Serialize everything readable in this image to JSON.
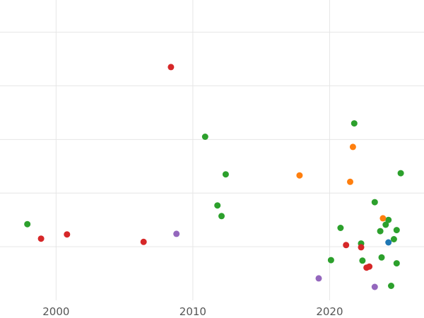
{
  "chart_data": {
    "type": "scatter",
    "title": "",
    "xlabel": "",
    "ylabel": "",
    "grid": true,
    "legend": "none",
    "xlim": [
      1995.9,
      2026.9
    ],
    "ylim": [
      0,
      5.6
    ],
    "x_ticks": [
      2000,
      2010,
      2020
    ],
    "x_tick_labels": [
      "2000",
      "2010",
      "2020"
    ],
    "y_gridlines": [
      1,
      2,
      3,
      4,
      5
    ],
    "series": [
      {
        "color": "#2ca02c",
        "points": [
          {
            "x": 1997.9,
            "y": 1.42
          },
          {
            "x": 2010.9,
            "y": 3.05
          },
          {
            "x": 2012.4,
            "y": 2.35
          },
          {
            "x": 2011.8,
            "y": 1.77
          },
          {
            "x": 2012.1,
            "y": 1.57
          },
          {
            "x": 2020.1,
            "y": 0.75
          },
          {
            "x": 2020.8,
            "y": 1.35
          },
          {
            "x": 2021.8,
            "y": 3.3
          },
          {
            "x": 2022.3,
            "y": 1.06
          },
          {
            "x": 2022.4,
            "y": 0.74
          },
          {
            "x": 2023.3,
            "y": 1.83
          },
          {
            "x": 2023.7,
            "y": 1.29
          },
          {
            "x": 2023.8,
            "y": 0.8
          },
          {
            "x": 2024.1,
            "y": 1.41
          },
          {
            "x": 2024.3,
            "y": 1.5
          },
          {
            "x": 2024.5,
            "y": 0.27
          },
          {
            "x": 2024.7,
            "y": 1.14
          },
          {
            "x": 2024.9,
            "y": 1.31
          },
          {
            "x": 2024.9,
            "y": 0.69
          },
          {
            "x": 2025.2,
            "y": 2.37
          }
        ]
      },
      {
        "color": "#d62728",
        "points": [
          {
            "x": 1998.9,
            "y": 1.15
          },
          {
            "x": 2000.8,
            "y": 1.23
          },
          {
            "x": 2006.4,
            "y": 1.09
          },
          {
            "x": 2008.4,
            "y": 4.35
          },
          {
            "x": 2021.2,
            "y": 1.03
          },
          {
            "x": 2022.3,
            "y": 0.99
          },
          {
            "x": 2022.7,
            "y": 0.61
          },
          {
            "x": 2022.9,
            "y": 0.63
          }
        ]
      },
      {
        "color": "#ff7f0e",
        "points": [
          {
            "x": 2017.8,
            "y": 2.33
          },
          {
            "x": 2021.5,
            "y": 2.21
          },
          {
            "x": 2021.7,
            "y": 2.86
          },
          {
            "x": 2023.9,
            "y": 1.53
          }
        ]
      },
      {
        "color": "#9467bd",
        "points": [
          {
            "x": 2008.8,
            "y": 1.24
          },
          {
            "x": 2019.2,
            "y": 0.41
          },
          {
            "x": 2023.3,
            "y": 0.25
          }
        ]
      },
      {
        "color": "#1f77b4",
        "points": [
          {
            "x": 2024.3,
            "y": 1.08
          }
        ]
      }
    ]
  }
}
